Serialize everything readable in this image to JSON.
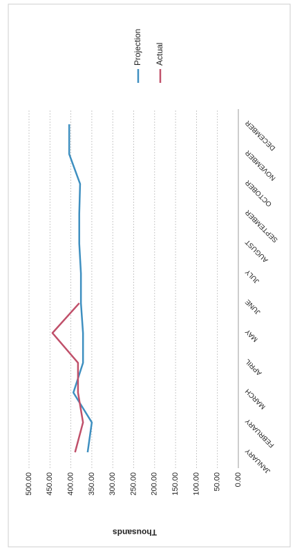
{
  "chart_data": {
    "type": "line",
    "y_axis_label": "Thousands",
    "categories": [
      "JANUARY",
      "FEBRUARY",
      "MARCH",
      "APRIL",
      "MAY",
      "JUNE",
      "JULY",
      "AUGUST",
      "SEPTEMBER",
      "OCTOBER",
      "NOVEMBER",
      "DECEMBER"
    ],
    "series": [
      {
        "name": "Projection",
        "color": "#3e8fc0",
        "values": [
          360,
          350,
          394,
          371,
          371,
          376,
          376,
          380,
          380,
          378,
          404,
          404
        ]
      },
      {
        "name": "Actual",
        "color": "#c0506a",
        "values": [
          390,
          371,
          383,
          383,
          444,
          380,
          null,
          null,
          null,
          null,
          null,
          null
        ]
      }
    ],
    "ylim": [
      0,
      500
    ],
    "yticks": [
      {
        "value": 0,
        "label": "0.00"
      },
      {
        "value": 50,
        "label": "50.00"
      },
      {
        "value": 100,
        "label": "100.00"
      },
      {
        "value": 150,
        "label": "150.00"
      },
      {
        "value": 200,
        "label": "200.00"
      },
      {
        "value": 250,
        "label": "250.00"
      },
      {
        "value": 300,
        "label": "300.00"
      },
      {
        "value": 350,
        "label": "350.00"
      },
      {
        "value": 400,
        "label": "400.00"
      },
      {
        "value": 450,
        "label": "450.00"
      },
      {
        "value": 500,
        "label": "500.00"
      }
    ],
    "grid": true,
    "legend": "right"
  }
}
